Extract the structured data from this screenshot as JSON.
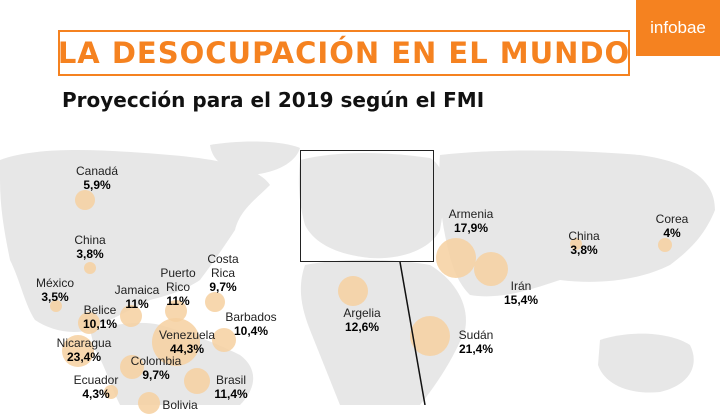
{
  "header": {
    "title": "LA DESOCUPACIÓN EN EL MUNDO",
    "subtitle": "Proyección para el 2019 según el FMI",
    "logo": "infobae",
    "accent_color": "#f58220"
  },
  "countries": [
    {
      "name": "Canadá",
      "value": "5,9%"
    },
    {
      "name": "China",
      "value": "3,8%"
    },
    {
      "name": "México",
      "value": "3,5%"
    },
    {
      "name": "Jamaica",
      "value": "11%"
    },
    {
      "name": "Puerto Rico",
      "value": "11%"
    },
    {
      "name": "Costa Rica",
      "value": "9,7%"
    },
    {
      "name": "Belice",
      "value": "10,1%"
    },
    {
      "name": "Barbados",
      "value": "10,4%"
    },
    {
      "name": "Nicaragua",
      "value": "23,4%"
    },
    {
      "name": "Venezuela",
      "value": "44,3%"
    },
    {
      "name": "Colombia",
      "value": "9,7%"
    },
    {
      "name": "Ecuador",
      "value": "4,3%"
    },
    {
      "name": "Brasil",
      "value": "11,4%"
    },
    {
      "name": "Bolivia",
      "value": ""
    },
    {
      "name": "Argelia",
      "value": "12,6%"
    },
    {
      "name": "Sudán",
      "value": "21,4%"
    },
    {
      "name": "Armenia",
      "value": "17,9%"
    },
    {
      "name": "Irán",
      "value": "15,4%"
    },
    {
      "name": "China",
      "value": "3,8%"
    },
    {
      "name": "Corea",
      "value": "4%"
    }
  ]
}
